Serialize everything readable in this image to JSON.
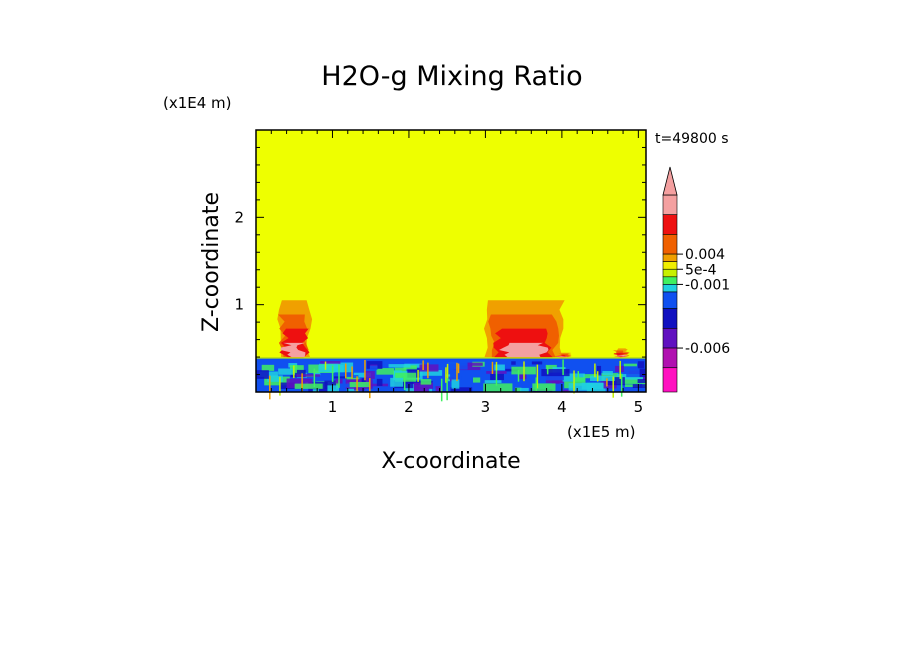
{
  "chart_data": {
    "type": "heatmap",
    "title": "H2O-g Mixing Ratio",
    "xlabel": "X-coordinate",
    "ylabel": "Z-coordinate",
    "x_scale_label": "(x1E5 m)",
    "y_scale_label": "(x1E4 m)",
    "time_label": "t=49800 s",
    "xlim": [
      0,
      5.1
    ],
    "ylim": [
      0,
      3.0
    ],
    "x_ticks": [
      1,
      2,
      3,
      4,
      5
    ],
    "y_ticks": [
      1,
      2
    ],
    "x_tick_labels": [
      "1",
      "2",
      "3",
      "4",
      "5"
    ],
    "y_tick_labels": [
      "1",
      "2"
    ],
    "background_color": "#eeff00",
    "colorbar": {
      "tick_labels": [
        "0.004",
        "5e-4",
        "-0.001",
        "-0.006"
      ],
      "colors_top_to_bottom": [
        "#f4a0a0",
        "#ee1010",
        "#f06000",
        "#f0a000",
        "#f0ee00",
        "#c8f000",
        "#40f060",
        "#20d0e0",
        "#1050f0",
        "#1010c0",
        "#6010c0",
        "#b010b0",
        "#ff10c0"
      ],
      "extend_top": true
    },
    "features": [
      {
        "name": "left-plume",
        "x_range": [
          0.3,
          0.7
        ],
        "z_top": 1.05
      },
      {
        "name": "central-plume",
        "x_range": [
          3.0,
          4.0
        ],
        "z_top": 1.05
      },
      {
        "name": "small-plume-4",
        "x_range": [
          3.95,
          4.1
        ],
        "z_top": 0.45
      },
      {
        "name": "small-plume-4.8",
        "x_range": [
          4.7,
          4.85
        ],
        "z_top": 0.5
      },
      {
        "name": "surface-layer",
        "x_range": [
          0,
          5.1
        ],
        "z_top": 0.4
      }
    ]
  }
}
